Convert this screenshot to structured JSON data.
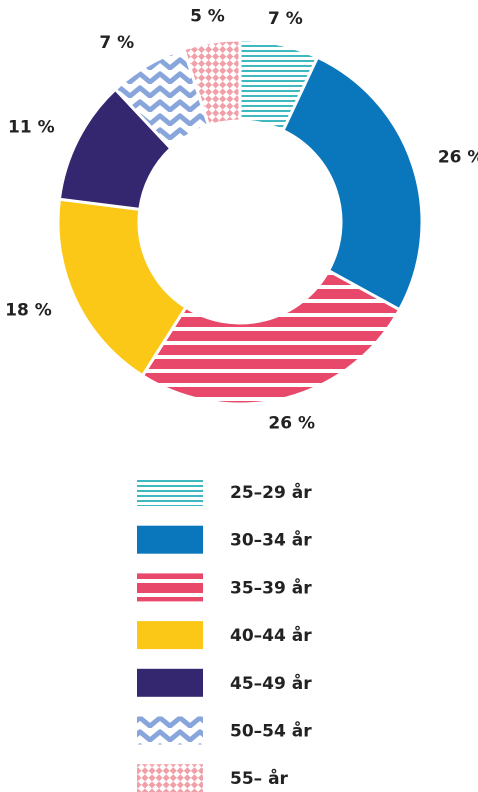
{
  "chart_data": {
    "type": "donut",
    "categories": [
      "25–29 år",
      "30–34 år",
      "35–39 år",
      "40–44 år",
      "45–49 år",
      "50–54 år",
      "55– år"
    ],
    "values": [
      7,
      26,
      26,
      18,
      11,
      7,
      5
    ],
    "value_labels": [
      "7 %",
      "26 %",
      "26 %",
      "18 %",
      "11 %",
      "7 %",
      "5 %"
    ],
    "colors": [
      "#3fb8c0",
      "#0a77bd",
      "#e8496a",
      "#fcc817",
      "#34276f",
      "#88a6dc",
      "#f0a0a8"
    ],
    "patterns": [
      "stripes",
      "solid",
      "stripes-wide",
      "solid",
      "solid",
      "chevron",
      "checker"
    ]
  }
}
